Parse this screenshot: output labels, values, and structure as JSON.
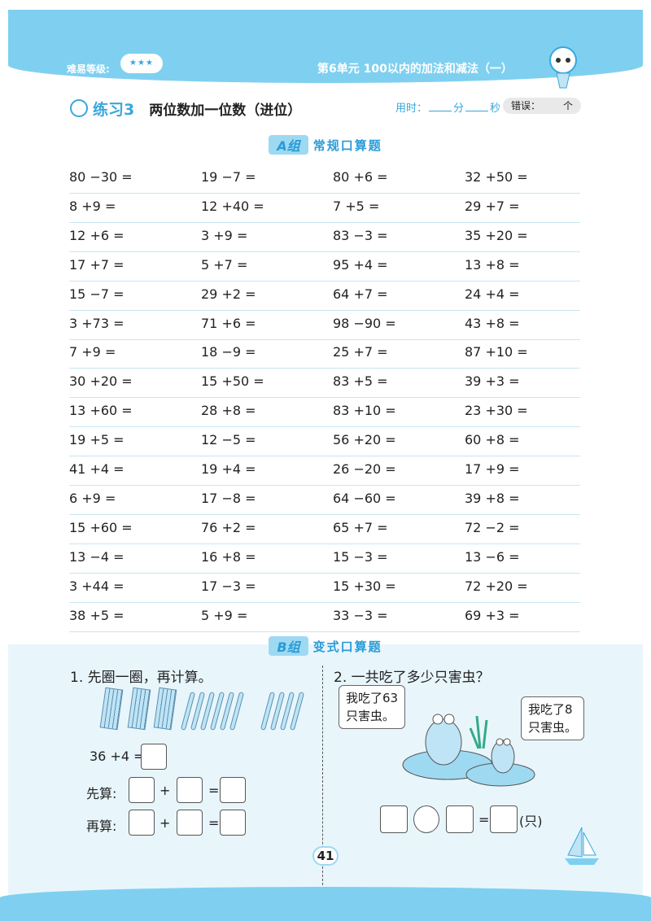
{
  "header": {
    "difficulty_label": "难易等级:",
    "difficulty_stars": "★★★",
    "unit": "第6单元  100以内的加法和减法（一）"
  },
  "exercise": {
    "number": "练习3",
    "topic": "两位数加一位数（进位）",
    "time_label": "用时：",
    "minute": "分",
    "second": "秒",
    "error_label": "错误：",
    "error_unit": "个"
  },
  "group_a": {
    "tag": "A组",
    "title": "常规口算题",
    "rows": [
      [
        "80 −30 =",
        "19 −7 =",
        "80 +6 =",
        "32 +50 ="
      ],
      [
        "8 +9 =",
        "12 +40 =",
        "7 +5 =",
        "29 +7 ="
      ],
      [
        "12 +6 =",
        "3 +9 =",
        "83 −3 =",
        "35 +20 ="
      ],
      [
        "17 +7 =",
        "5 +7 =",
        "95 +4 =",
        "13 +8 ="
      ],
      [
        "15 −7 =",
        "29 +2 =",
        "64 +7 =",
        "24 +4 ="
      ],
      [
        "3 +73 =",
        "71 +6 =",
        "98 −90 =",
        "43 +8 ="
      ],
      [
        "7 +9 =",
        "18 −9 =",
        "25 +7 =",
        "87 +10 ="
      ],
      [
        "30 +20 =",
        "15 +50 =",
        "83 +5 =",
        "39 +3 ="
      ],
      [
        "13 +60 =",
        "28 +8 =",
        "83 +10 =",
        "23 +30 ="
      ],
      [
        "19 +5 =",
        "12 −5 =",
        "56 +20 =",
        "60 +8 ="
      ],
      [
        "41 +4 =",
        "19 +4 =",
        "26 −20 =",
        "17 +9 ="
      ],
      [
        "6 +9 =",
        "17 −8 =",
        "64 −60 =",
        "39 +8 ="
      ],
      [
        "15 +60 =",
        "76 +2 =",
        "65 +7 =",
        "72 −2 ="
      ],
      [
        "13 −4 =",
        "16 +8 =",
        "15 −3 =",
        "13 −6 ="
      ],
      [
        "3 +44 =",
        "17 −3 =",
        "15 +30 =",
        "72 +20 ="
      ],
      [
        "38 +5 =",
        "5 +9 =",
        "33 −3 =",
        "69 +3 ="
      ]
    ]
  },
  "group_b": {
    "tag": "B组",
    "title": "变式口算题",
    "q1": {
      "prompt": "1. 先圈一圈，再计算。",
      "equation": "36 +4 =",
      "first_label": "先算:",
      "then_label": "再算:",
      "plus": "+",
      "equals": "="
    },
    "q2": {
      "prompt": "2. 一共吃了多少只害虫？",
      "bubble1": "我吃了63\n只害虫。",
      "bubble1_l1": "我吃了63",
      "bubble1_l2": "只害虫。",
      "bubble2_l1": "我吃了8",
      "bubble2_l2": "只害虫。",
      "equals": "=",
      "unit": "(只)"
    }
  },
  "page_number": "41",
  "colors": {
    "accent": "#3aa6dd",
    "band": "#7fd0f0",
    "section_bg": "#e8f6fc"
  }
}
